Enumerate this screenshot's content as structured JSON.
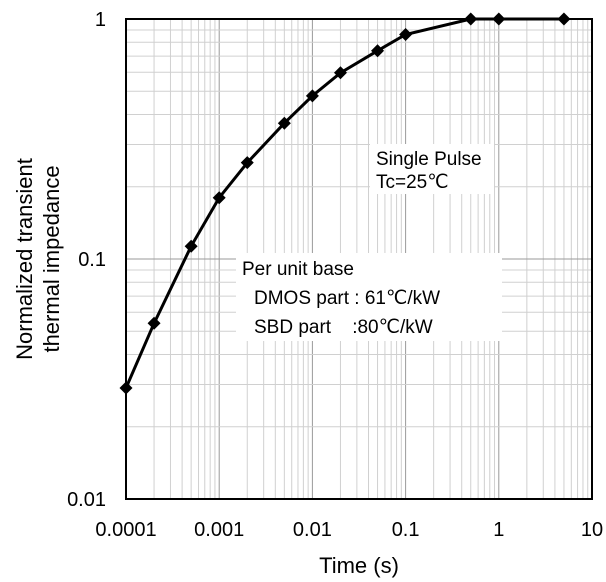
{
  "chart_data": {
    "type": "line",
    "title": "",
    "xlabel": "Time (s)",
    "ylabel_lines": [
      "Normalized transient",
      "thermal impedance"
    ],
    "x_scale": "log",
    "y_scale": "log",
    "xlim": [
      0.0001,
      10
    ],
    "ylim": [
      0.01,
      1
    ],
    "x_ticks": [
      "0.0001",
      "0.001",
      "0.01",
      "0.1",
      "1",
      "10"
    ],
    "y_ticks": [
      "0.01",
      "0.1",
      "1"
    ],
    "grid": true,
    "legend": "none",
    "series": [
      {
        "color": "#000000",
        "marker": "diamond",
        "x": [
          0.0001,
          0.0002,
          0.0005,
          0.001,
          0.002,
          0.005,
          0.01,
          0.02,
          0.05,
          0.1,
          0.5,
          1,
          5
        ],
        "y": [
          0.029,
          0.054,
          0.113,
          0.18,
          0.252,
          0.368,
          0.478,
          0.597,
          0.737,
          0.862,
          1.0,
          1.0,
          1.0
        ]
      }
    ],
    "annotations": {
      "pulse": [
        "Single Pulse",
        "Tc=25℃"
      ],
      "base": [
        "Per unit base",
        "DMOS part : 61℃/kW",
        "SBD part    :80℃/kW"
      ]
    }
  }
}
